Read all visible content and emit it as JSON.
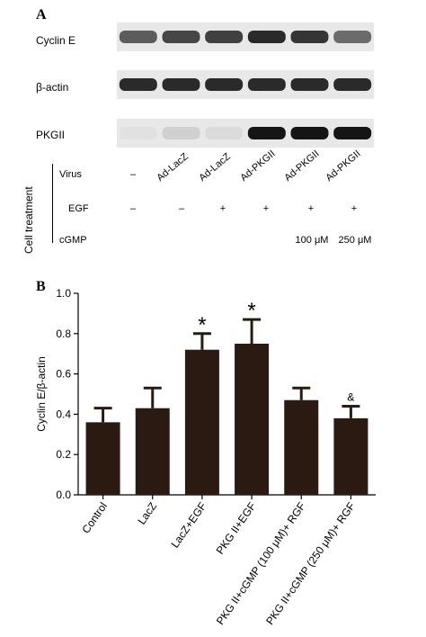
{
  "panel_a": {
    "letter": "A",
    "blots": [
      {
        "label": "Cyclin E",
        "intensities": [
          0.62,
          0.72,
          0.75,
          0.85,
          0.8,
          0.55
        ]
      },
      {
        "label": "β-actin",
        "intensities": [
          0.85,
          0.85,
          0.85,
          0.85,
          0.85,
          0.85
        ]
      },
      {
        "label": "PKGII",
        "intensities": [
          0.0,
          0.08,
          0.03,
          0.95,
          0.95,
          0.95
        ]
      }
    ],
    "treatment_title": "Cell treatment",
    "virus_label": "Virus",
    "virus_values": [
      "–",
      "Ad-LacZ",
      "Ad-LacZ",
      "Ad-PKGII",
      "Ad-PKGII",
      "Ad-PKGII"
    ],
    "egf_label": "EGF",
    "egf_values": [
      "–",
      "–",
      "+",
      "+",
      "+",
      "+"
    ],
    "cgmp_label": "cGMP",
    "cgmp_values": [
      "",
      "",
      "",
      "",
      "100 μM",
      "250 μM"
    ]
  },
  "panel_b": {
    "letter": "B"
  },
  "chart_data": {
    "type": "bar",
    "categories": [
      "Control",
      "LacZ",
      "LacZ+EGF",
      "PKG II+EGF",
      "PKG II+cGMP (100 μM)+ RGF",
      "PKG II+cGMP (250 μM)+ RGF"
    ],
    "values": [
      0.36,
      0.43,
      0.72,
      0.75,
      0.47,
      0.38
    ],
    "errors": [
      0.07,
      0.1,
      0.08,
      0.12,
      0.06,
      0.06
    ],
    "annotations": [
      "",
      "",
      "*",
      "*",
      "",
      "&"
    ],
    "ylabel": "Cyclin E/β-actin",
    "xlabel": "",
    "ylim": [
      0.0,
      1.0
    ],
    "yticks": [
      "0.0",
      "0.2",
      "0.4",
      "0.6",
      "0.8",
      "1.0"
    ],
    "bar_color": "#2a1a12",
    "grid": false
  }
}
